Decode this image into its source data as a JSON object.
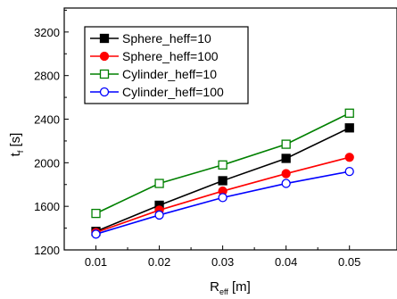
{
  "chart_data": {
    "type": "line",
    "title": "",
    "xlabel": {
      "main": "R",
      "sub": "eff",
      "unit": " [m]"
    },
    "ylabel": {
      "main": "t",
      "sub": "f",
      "unit": " [s]"
    },
    "x": [
      0.01,
      0.02,
      0.03,
      0.04,
      0.05
    ],
    "x_tick_labels": [
      "0.01",
      "0.02",
      "0.03",
      "0.04",
      "0.05"
    ],
    "xlim": [
      0.005,
      0.0575
    ],
    "ylim": [
      1200,
      3420
    ],
    "y_ticks": [
      1200,
      1600,
      2000,
      2400,
      2800,
      3200
    ],
    "y_tick_labels": [
      "1200",
      "1600",
      "2000",
      "2400",
      "2800",
      "3200"
    ],
    "grid": false,
    "legend_position": "top-left",
    "series": [
      {
        "name": "Sphere_heff=10",
        "color": "#000000",
        "marker": "square-filled",
        "values": [
          1370,
          1610,
          1835,
          2040,
          2320
        ]
      },
      {
        "name": "Sphere_heff=100",
        "color": "#ff0000",
        "marker": "circle-filled",
        "values": [
          1360,
          1565,
          1740,
          1900,
          2050
        ]
      },
      {
        "name": "Cylinder_heff=10",
        "color": "#008000",
        "marker": "square-open",
        "values": [
          1535,
          1810,
          1980,
          2170,
          2455
        ]
      },
      {
        "name": "Cylinder_heff=100",
        "color": "#0000ff",
        "marker": "circle-open",
        "values": [
          1345,
          1520,
          1680,
          1810,
          1920
        ]
      }
    ]
  }
}
